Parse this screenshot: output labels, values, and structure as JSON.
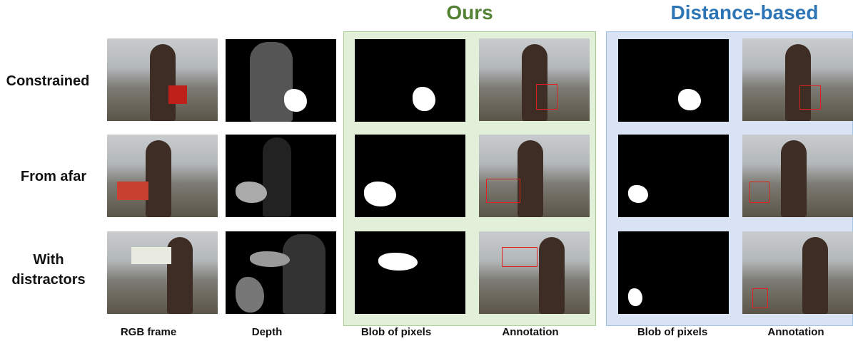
{
  "header": {
    "ours": "Ours",
    "distance": "Distance-based"
  },
  "rows": [
    "Constrained",
    "From afar",
    "With distractors"
  ],
  "columns": [
    "RGB frame",
    "Depth",
    "Blob of pixels",
    "Annotation",
    "Blob of pixels",
    "Annotation"
  ]
}
